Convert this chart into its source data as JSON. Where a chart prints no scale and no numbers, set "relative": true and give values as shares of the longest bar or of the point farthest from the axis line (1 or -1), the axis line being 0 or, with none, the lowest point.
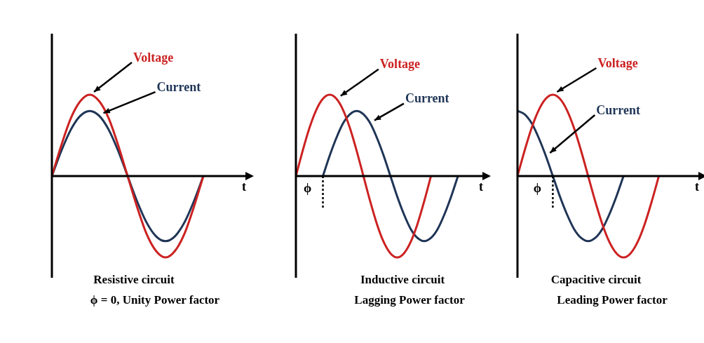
{
  "chart_data": [
    {
      "type": "line",
      "title": "Resistive circuit",
      "subtitle": "ϕ = 0, Unity Power factor",
      "xlabel": "t",
      "relative": true,
      "categories": [
        null,
        null,
        null,
        null,
        null,
        null,
        null,
        null,
        null,
        null,
        null,
        null,
        null,
        null,
        null,
        null,
        null,
        null,
        null,
        null,
        null
      ],
      "series": [
        {
          "name": "Voltage",
          "color": "#cc2222",
          "values": [
            0,
            0.38,
            0.71,
            0.92,
            1,
            0.92,
            0.71,
            0.38,
            0,
            -0.38,
            -0.71,
            -0.92,
            -1,
            -0.92,
            -0.71,
            -0.38,
            0,
            null,
            null,
            null,
            null
          ]
        },
        {
          "name": "Current",
          "color": "#1f3556",
          "values": [
            0,
            0.31,
            0.57,
            0.74,
            0.8,
            0.74,
            0.57,
            0.31,
            0,
            -0.31,
            -0.57,
            -0.74,
            -0.8,
            -0.74,
            -0.57,
            -0.31,
            0,
            null,
            null,
            null,
            null
          ]
        }
      ]
    },
    {
      "type": "line",
      "title": "Inductive circuit",
      "subtitle": "Lagging Power factor",
      "xlabel": "t",
      "relative": true,
      "annotations": [
        "ϕ"
      ],
      "categories": [
        null,
        null,
        null,
        null,
        null,
        null,
        null,
        null,
        null,
        null,
        null,
        null,
        null,
        null,
        null,
        null,
        null,
        null,
        null,
        null,
        null,
        null,
        null,
        null,
        null,
        null,
        null,
        null
      ],
      "series": [
        {
          "name": "Voltage",
          "color": "#cc2222",
          "values": [
            0,
            0.31,
            0.59,
            0.81,
            0.95,
            1,
            0.95,
            0.81,
            0.59,
            0.31,
            0,
            -0.31,
            -0.59,
            -0.81,
            -0.95,
            -1,
            -0.95,
            -0.81,
            -0.59,
            -0.31,
            0,
            null,
            null,
            null,
            null,
            null,
            null,
            null
          ]
        },
        {
          "name": "Current",
          "color": "#1f3556",
          "values": [
            null,
            null,
            null,
            null,
            0,
            0.25,
            0.47,
            0.65,
            0.76,
            0.8,
            0.76,
            0.65,
            0.47,
            0.25,
            0,
            -0.25,
            -0.47,
            -0.65,
            -0.76,
            -0.8,
            -0.76,
            -0.65,
            -0.47,
            -0.25,
            0,
            null,
            null,
            null
          ]
        }
      ]
    },
    {
      "type": "line",
      "title": "Capacitive circuit",
      "subtitle": "Leading Power factor",
      "xlabel": "t",
      "relative": true,
      "annotations": [
        "ϕ"
      ],
      "categories": [
        null,
        null,
        null,
        null,
        null,
        null,
        null,
        null,
        null,
        null,
        null,
        null,
        null,
        null,
        null,
        null,
        null,
        null,
        null,
        null,
        null,
        null,
        null,
        null,
        null,
        null
      ],
      "series": [
        {
          "name": "Voltage",
          "color": "#cc2222",
          "values": [
            0,
            0.31,
            0.59,
            0.81,
            0.95,
            1,
            0.95,
            0.81,
            0.59,
            0.31,
            0,
            -0.31,
            -0.59,
            -0.81,
            -0.95,
            -1,
            -0.95,
            -0.81,
            -0.59,
            -0.31,
            0,
            null,
            null,
            null,
            null,
            null
          ]
        },
        {
          "name": "Current",
          "color": "#1f3556",
          "values": [
            0.8,
            0.76,
            0.65,
            0.47,
            0.25,
            0,
            -0.25,
            -0.47,
            -0.65,
            -0.76,
            -0.8,
            -0.76,
            -0.65,
            -0.47,
            -0.25,
            0,
            null,
            null,
            null,
            null,
            null,
            null,
            null,
            null,
            null,
            null
          ]
        }
      ]
    }
  ]
}
